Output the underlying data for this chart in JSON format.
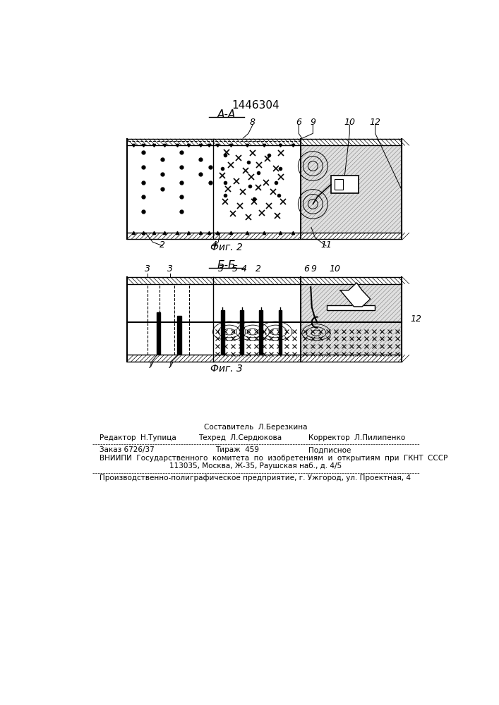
{
  "patent_number": "1446304",
  "fig2_label": "А-А",
  "fig3_label": "Б-Б",
  "fig2_caption": "Фиг. 2",
  "fig3_caption": "Фиг. 3",
  "bg_color": "#ffffff",
  "line_color": "#000000",
  "footer_line1": "Составитель  Л.Березкина",
  "footer_line2a": "Редактор  Н.Тупица",
  "footer_line2b": "Техред  Л.Сердюкова",
  "footer_line2c": "Корректор  Л.Пилипенко",
  "footer_line3a": "Заказ 6726/37",
  "footer_line3b": "Тираж  459",
  "footer_line3c": "Подписное",
  "footer_line4": "ВНИИПИ  Государственного  комитета  по  изобретениям  и  открытиям  при  ГКНТ  СССР",
  "footer_line5": "113035, Москва, Ж-35, Раушская наб., д. 4/5",
  "footer_line6": "Производственно-полиграфическое предприятие, г. Ужгород, ул. Проектная, 4"
}
